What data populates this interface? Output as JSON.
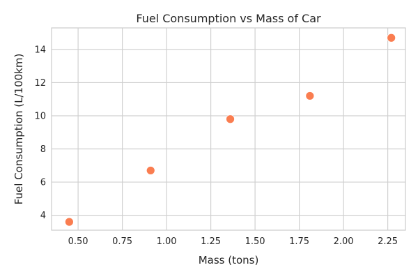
{
  "chart_data": {
    "type": "scatter",
    "title": "Fuel Consumption vs Mass of Car",
    "xlabel": "Mass (tons)",
    "ylabel": "Fuel Consumption (L/100km)",
    "xlim": [
      0.35,
      2.35
    ],
    "ylim": [
      3.1,
      15.3
    ],
    "xticks": [
      0.5,
      0.75,
      1.0,
      1.25,
      1.5,
      1.75,
      2.0,
      2.25
    ],
    "xtick_labels": [
      "0.50",
      "0.75",
      "1.00",
      "1.25",
      "1.50",
      "1.75",
      "2.00",
      "2.25"
    ],
    "yticks": [
      4,
      6,
      8,
      10,
      12,
      14
    ],
    "ytick_labels": [
      "4",
      "6",
      "8",
      "10",
      "12",
      "14"
    ],
    "grid": true,
    "legend": false,
    "marker_color": "#fa7d50",
    "points": [
      {
        "x": 0.45,
        "y": 3.6
      },
      {
        "x": 0.91,
        "y": 6.7
      },
      {
        "x": 1.36,
        "y": 9.8
      },
      {
        "x": 1.81,
        "y": 11.2
      },
      {
        "x": 2.27,
        "y": 14.7
      }
    ]
  }
}
